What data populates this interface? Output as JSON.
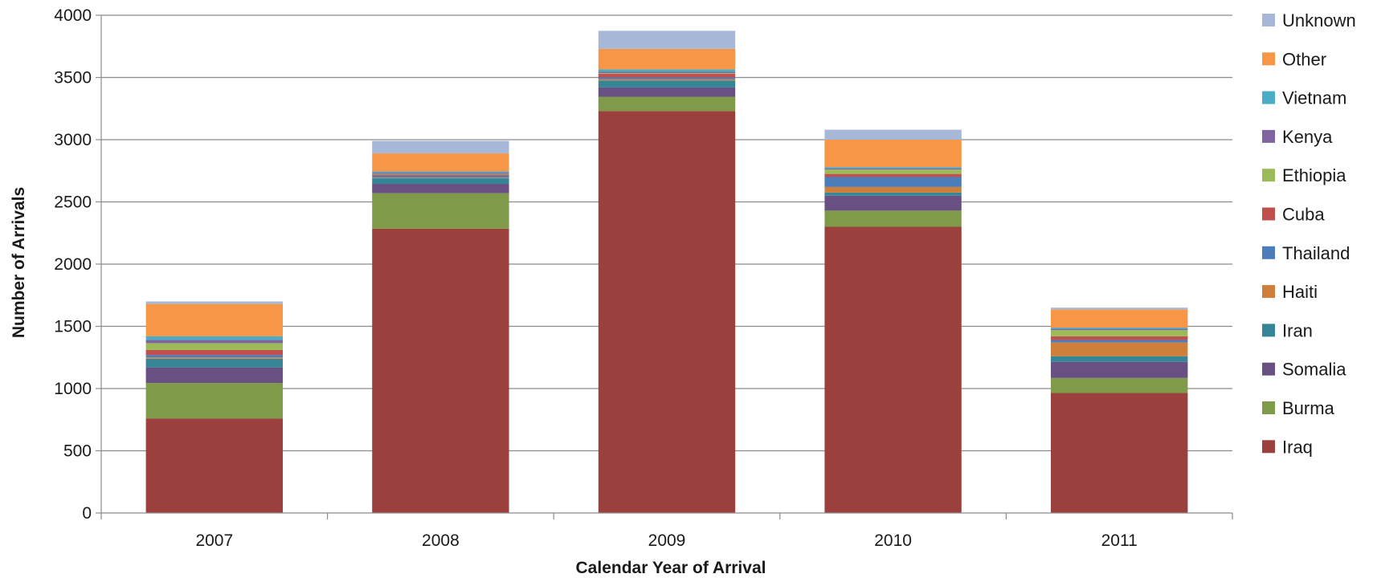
{
  "chart_data": {
    "type": "bar",
    "stacked": true,
    "xlabel": "Calendar Year of Arrival",
    "ylabel": "Number of Arrivals",
    "ylim": [
      0,
      4000
    ],
    "yticks": [
      0,
      500,
      1000,
      1500,
      2000,
      2500,
      3000,
      3500,
      4000
    ],
    "grid": true,
    "legend_position": "right",
    "categories": [
      "2007",
      "2008",
      "2009",
      "2010",
      "2011"
    ],
    "series": [
      {
        "name": "Iraq",
        "color": "#9C403D",
        "values": [
          760,
          2285,
          3230,
          2300,
          965
        ]
      },
      {
        "name": "Burma",
        "color": "#7F9A48",
        "values": [
          285,
          285,
          115,
          130,
          120
        ]
      },
      {
        "name": "Somalia",
        "color": "#695083",
        "values": [
          125,
          75,
          75,
          120,
          130
        ]
      },
      {
        "name": "Iran",
        "color": "#358596",
        "values": [
          70,
          45,
          55,
          25,
          45
        ]
      },
      {
        "name": "Haiti",
        "color": "#D07F3A",
        "values": [
          10,
          5,
          10,
          45,
          110
        ]
      },
      {
        "name": "Thailand",
        "color": "#4A7DBA",
        "values": [
          20,
          15,
          15,
          80,
          20
        ]
      },
      {
        "name": "Cuba",
        "color": "#C0504D",
        "values": [
          40,
          10,
          30,
          25,
          30
        ]
      },
      {
        "name": "Ethiopia",
        "color": "#9BBB59",
        "values": [
          55,
          5,
          5,
          35,
          50
        ]
      },
      {
        "name": "Kenya",
        "color": "#8064A2",
        "values": [
          25,
          10,
          10,
          10,
          10
        ]
      },
      {
        "name": "Vietnam",
        "color": "#4BACC6",
        "values": [
          30,
          10,
          20,
          10,
          10
        ]
      },
      {
        "name": "Other",
        "color": "#F79646",
        "values": [
          260,
          145,
          165,
          220,
          145
        ]
      },
      {
        "name": "Unknown",
        "color": "#A6B7D8",
        "values": [
          20,
          100,
          145,
          80,
          15
        ]
      }
    ]
  }
}
